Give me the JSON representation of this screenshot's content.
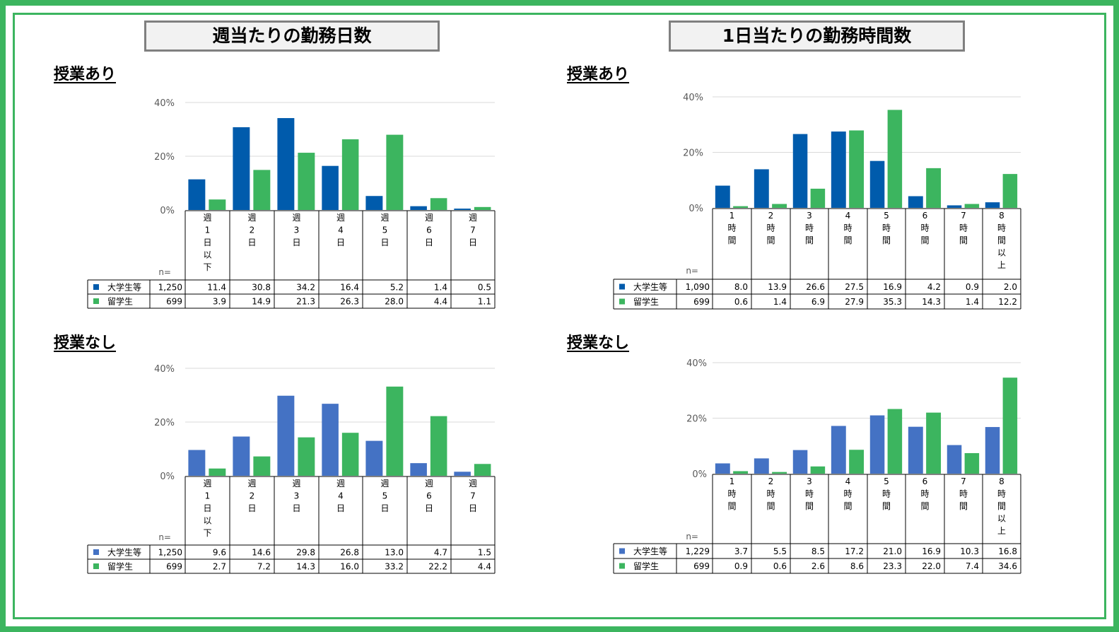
{
  "titles": {
    "left": "週当たりの勤務日数",
    "right": "1日当たりの勤務時間数"
  },
  "sections": {
    "with_class": "授業あり",
    "without_class": "授業なし"
  },
  "n_label": "n=",
  "colors": {
    "frame": "#3cb55f",
    "univ_dark": "#005bac",
    "univ_light": "#4472c4",
    "intl": "#3cb55f"
  },
  "chart_data": [
    {
      "type": "bar",
      "id": "days-with-class",
      "title": "週当たりの勤務日数",
      "section": "授業あり",
      "categories": [
        [
          "週",
          "1",
          "日",
          "以",
          "下"
        ],
        [
          "週",
          "2",
          "日"
        ],
        [
          "週",
          "3",
          "日"
        ],
        [
          "週",
          "4",
          "日"
        ],
        [
          "週",
          "5",
          "日"
        ],
        [
          "週",
          "6",
          "日"
        ],
        [
          "週",
          "7",
          "日"
        ]
      ],
      "series": [
        {
          "name": "大学生等",
          "n": "1,250",
          "values": [
            11.4,
            30.8,
            34.2,
            16.4,
            5.2,
            1.4,
            0.5
          ],
          "labels": [
            "11.4",
            "30.8",
            "34.2",
            "16.4",
            "5.2",
            "1.4",
            "0.5"
          ],
          "color": "#005bac"
        },
        {
          "name": "留学生",
          "n": "699",
          "values": [
            3.9,
            14.9,
            21.3,
            26.3,
            28.0,
            4.4,
            1.1
          ],
          "labels": [
            "3.9",
            "14.9",
            "21.3",
            "26.3",
            "28.0",
            "4.4",
            "1.1"
          ],
          "color": "#3cb55f"
        }
      ],
      "yticks": [
        "40%",
        "20%",
        "0%"
      ],
      "ylim": [
        0,
        40
      ],
      "grid": true
    },
    {
      "type": "bar",
      "id": "hours-with-class",
      "title": "1日当たりの勤務時間数",
      "section": "授業あり",
      "categories": [
        [
          "1",
          "時",
          "間"
        ],
        [
          "2",
          "時",
          "間"
        ],
        [
          "3",
          "時",
          "間"
        ],
        [
          "4",
          "時",
          "間"
        ],
        [
          "5",
          "時",
          "間"
        ],
        [
          "6",
          "時",
          "間"
        ],
        [
          "7",
          "時",
          "間"
        ],
        [
          "8",
          "時",
          "間",
          "以",
          "上"
        ]
      ],
      "series": [
        {
          "name": "大学生等",
          "n": "1,090",
          "values": [
            8.0,
            13.9,
            26.6,
            27.5,
            16.9,
            4.2,
            0.9,
            2.0
          ],
          "labels": [
            "8.0",
            "13.9",
            "26.6",
            "27.5",
            "16.9",
            "4.2",
            "0.9",
            "2.0"
          ],
          "color": "#005bac"
        },
        {
          "name": "留学生",
          "n": "699",
          "values": [
            0.6,
            1.4,
            6.9,
            27.9,
            35.3,
            14.3,
            1.4,
            12.2
          ],
          "labels": [
            "0.6",
            "1.4",
            "6.9",
            "27.9",
            "35.3",
            "14.3",
            "1.4",
            "12.2"
          ],
          "color": "#3cb55f"
        }
      ],
      "yticks": [
        "40%",
        "20%",
        "0%"
      ],
      "ylim": [
        0,
        40
      ],
      "grid": true
    },
    {
      "type": "bar",
      "id": "days-without-class",
      "title": "週当たりの勤務日数",
      "section": "授業なし",
      "categories": [
        [
          "週",
          "1",
          "日",
          "以",
          "下"
        ],
        [
          "週",
          "2",
          "日"
        ],
        [
          "週",
          "3",
          "日"
        ],
        [
          "週",
          "4",
          "日"
        ],
        [
          "週",
          "5",
          "日"
        ],
        [
          "週",
          "6",
          "日"
        ],
        [
          "週",
          "7",
          "日"
        ]
      ],
      "series": [
        {
          "name": "大学生等",
          "n": "1,250",
          "values": [
            9.6,
            14.6,
            29.8,
            26.8,
            13.0,
            4.7,
            1.5
          ],
          "labels": [
            "9.6",
            "14.6",
            "29.8",
            "26.8",
            "13.0",
            "4.7",
            "1.5"
          ],
          "color": "#4472c4"
        },
        {
          "name": "留学生",
          "n": "699",
          "values": [
            2.7,
            7.2,
            14.3,
            16.0,
            33.2,
            22.2,
            4.4
          ],
          "labels": [
            "2.7",
            "7.2",
            "14.3",
            "16.0",
            "33.2",
            "22.2",
            "4.4"
          ],
          "color": "#3cb55f"
        }
      ],
      "yticks": [
        "40%",
        "20%",
        "0%"
      ],
      "ylim": [
        0,
        40
      ],
      "grid": true
    },
    {
      "type": "bar",
      "id": "hours-without-class",
      "title": "1日当たりの勤務時間数",
      "section": "授業なし",
      "categories": [
        [
          "1",
          "時",
          "間"
        ],
        [
          "2",
          "時",
          "間"
        ],
        [
          "3",
          "時",
          "間"
        ],
        [
          "4",
          "時",
          "間"
        ],
        [
          "5",
          "時",
          "間"
        ],
        [
          "6",
          "時",
          "間"
        ],
        [
          "7",
          "時",
          "間"
        ],
        [
          "8",
          "時",
          "間",
          "以",
          "上"
        ]
      ],
      "series": [
        {
          "name": "大学生等",
          "n": "1,229",
          "values": [
            3.7,
            5.5,
            8.5,
            17.2,
            21.0,
            16.9,
            10.3,
            16.8
          ],
          "labels": [
            "3.7",
            "5.5",
            "8.5",
            "17.2",
            "21.0",
            "16.9",
            "10.3",
            "16.8"
          ],
          "color": "#4472c4"
        },
        {
          "name": "留学生",
          "n": "699",
          "values": [
            0.9,
            0.6,
            2.6,
            8.6,
            23.3,
            22.0,
            7.4,
            34.6
          ],
          "labels": [
            "0.9",
            "0.6",
            "2.6",
            "8.6",
            "23.3",
            "22.0",
            "7.4",
            "34.6"
          ],
          "color": "#3cb55f"
        }
      ],
      "yticks": [
        "40%",
        "20%",
        "0%"
      ],
      "ylim": [
        0,
        40
      ],
      "grid": true
    }
  ]
}
